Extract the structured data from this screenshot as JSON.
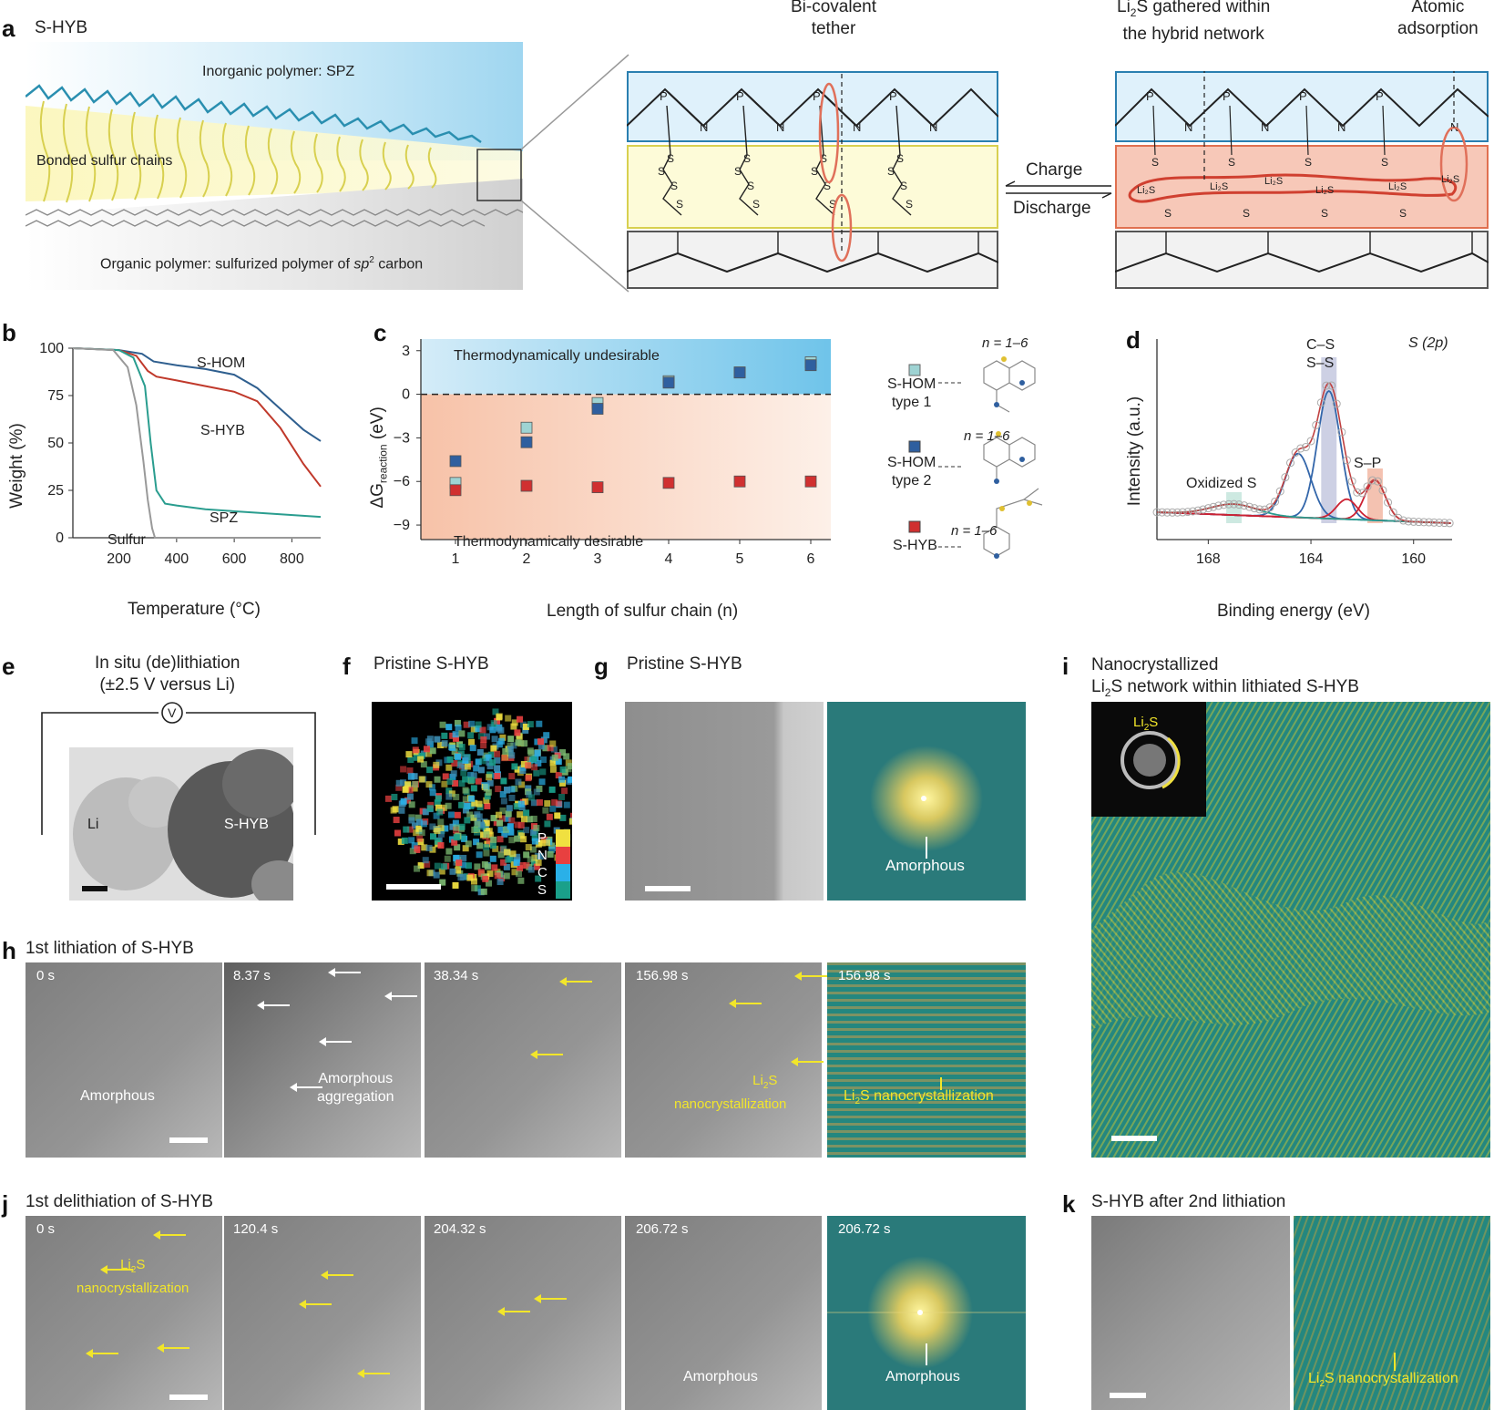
{
  "panels": {
    "a": {
      "label": "a",
      "title": "S-HYB",
      "inorganic": "Inorganic polymer: SPZ",
      "bonded": "Bonded sulfur chains",
      "organic_pre": "Organic polymer: sulfurized polymer of ",
      "organic_sp": "sp",
      "organic_sup": "2",
      "organic_post": " carbon",
      "bicovalent_line1": "Bi-covalent",
      "bicovalent_line2": "tether",
      "li2s_gathered_line1": "Li",
      "li2s_gathered_sub": "2",
      "li2s_gathered_rest": "S gathered within",
      "li2s_gathered_line2": "the hybrid network",
      "atomic_line1": "Atomic",
      "atomic_line2": "adsorption",
      "charge": "Charge",
      "discharge": "Discharge",
      "atom_P": "P",
      "atom_N": "N",
      "atom_S": "S",
      "li2s_small": "Li₂S"
    },
    "b": {
      "label": "b",
      "ylabel": "Weight (%)",
      "xlabel": "Temperature (°C)",
      "yticks": [
        "100",
        "75",
        "50",
        "25",
        "0"
      ],
      "xticks": [
        "200",
        "400",
        "600",
        "800"
      ],
      "labels": {
        "shom": "S-HOM",
        "shyb": "S-HYB",
        "spz": "SPZ",
        "sulfur": "Sulfur"
      }
    },
    "c": {
      "label": "c",
      "undesirable": "Thermodynamically undesirable",
      "desirable": "Thermodynamically desirable",
      "ylabel_main": "ΔG",
      "ylabel_sub": "reaction",
      "ylabel_unit": " (eV)",
      "xlabel": "Length of sulfur chain (n)",
      "legend": [
        {
          "name": "S-HOM",
          "name2": "type 1",
          "n": "n = 1–6"
        },
        {
          "name": "S-HOM",
          "name2": "type 2",
          "n": "n = 1–6"
        },
        {
          "name": "S-HYB",
          "name2": "",
          "n": "n = 1–6"
        }
      ]
    },
    "d": {
      "label": "d",
      "ylabel": "Intensity (a.u.)",
      "xlabel": "Binding energy (eV)",
      "xticks": [
        "168",
        "164",
        "160"
      ],
      "orbital_label": "S (2p)",
      "peaks": {
        "cs": "C–S",
        "ss": "S–S",
        "sp": "S–P",
        "ox": "Oxidized S"
      }
    },
    "e": {
      "label": "e",
      "title1": "In situ (de)lithiation",
      "title2": "(±2.5 V versus Li)",
      "li": "Li",
      "shyb": "S-HYB",
      "v": "V"
    },
    "f": {
      "label": "f",
      "title": "Pristine S-HYB",
      "legend": [
        "P",
        "N",
        "C",
        "S"
      ]
    },
    "g": {
      "label": "g",
      "title": "Pristine S-HYB",
      "amorphous": "Amorphous"
    },
    "h": {
      "label": "h",
      "title": "1st lithiation of S-HYB",
      "frames": [
        "0 s",
        "8.37 s",
        "38.34 s",
        "156.98 s",
        "156.98 s"
      ],
      "amorphous": "Amorphous",
      "agg1": "Amorphous",
      "agg2": "aggregation",
      "nano_li": "Li",
      "nano_sub": "2",
      "nano_s": "S",
      "nano2": "nanocrystallization",
      "fft_label": "S nanocrystallization"
    },
    "i": {
      "label": "i",
      "title1": "Nanocrystallized",
      "title2_li": "Li",
      "title2_sub": "2",
      "title2_rest": "S network within lithiated S-HYB",
      "inset_li": "Li",
      "inset_sub": "2",
      "inset_s": "S"
    },
    "j": {
      "label": "j",
      "title": "1st delithiation of S-HYB",
      "frames": [
        "0 s",
        "120.4 s",
        "204.32 s",
        "206.72 s",
        "206.72 s"
      ],
      "nano_li": "Li",
      "nano_sub": "2",
      "nano_s": "S",
      "nano2": "nanocrystallization",
      "amorphous": "Amorphous"
    },
    "k": {
      "label": "k",
      "title": "S-HYB after 2nd lithiation",
      "nano": "S nanocrystallization",
      "nano_li": "Li",
      "nano_sub": "2"
    }
  },
  "chart_data": [
    {
      "panel": "b",
      "type": "line",
      "xlabel": "Temperature (°C)",
      "ylabel": "Weight (%)",
      "xlim": [
        40,
        900
      ],
      "ylim": [
        0,
        100
      ],
      "series": [
        {
          "name": "S-HOM",
          "color": "#2f5f8f",
          "points": [
            [
              40,
              100
            ],
            [
              200,
              99
            ],
            [
              280,
              97
            ],
            [
              320,
              93
            ],
            [
              400,
              91
            ],
            [
              500,
              89
            ],
            [
              600,
              86
            ],
            [
              680,
              79
            ],
            [
              760,
              68
            ],
            [
              840,
              57
            ],
            [
              900,
              51
            ]
          ]
        },
        {
          "name": "S-HYB",
          "color": "#c0392b",
          "points": [
            [
              40,
              100
            ],
            [
              200,
              99
            ],
            [
              260,
              96
            ],
            [
              300,
              88
            ],
            [
              330,
              85
            ],
            [
              400,
              83
            ],
            [
              500,
              80
            ],
            [
              600,
              77
            ],
            [
              680,
              72
            ],
            [
              760,
              58
            ],
            [
              840,
              39
            ],
            [
              900,
              27
            ]
          ]
        },
        {
          "name": "SPZ",
          "color": "#2a9d8f",
          "points": [
            [
              40,
              100
            ],
            [
              200,
              99
            ],
            [
              250,
              95
            ],
            [
              290,
              80
            ],
            [
              310,
              50
            ],
            [
              330,
              25
            ],
            [
              360,
              18
            ],
            [
              400,
              17
            ],
            [
              500,
              15
            ],
            [
              700,
              13
            ],
            [
              900,
              11
            ]
          ]
        },
        {
          "name": "Sulfur",
          "color": "#999999",
          "points": [
            [
              40,
              100
            ],
            [
              180,
              99
            ],
            [
              230,
              90
            ],
            [
              260,
              70
            ],
            [
              285,
              40
            ],
            [
              300,
              20
            ],
            [
              315,
              5
            ],
            [
              325,
              0
            ],
            [
              900,
              0
            ]
          ]
        }
      ]
    },
    {
      "panel": "c",
      "type": "scatter",
      "xlabel": "Length of sulfur chain (n)",
      "ylabel": "ΔG reaction (eV)",
      "categories": [
        1,
        2,
        3,
        4,
        5,
        6
      ],
      "ylim": [
        -10,
        3.8
      ],
      "yticks": [
        3,
        0,
        -3,
        -6,
        -9
      ],
      "series": [
        {
          "name": "S-HOM type 1",
          "color": "#9ed3d3",
          "values": [
            -6.1,
            -2.3,
            -0.6,
            0.9,
            1.5,
            2.2
          ]
        },
        {
          "name": "S-HOM type 2",
          "color": "#2f5f9f",
          "values": [
            -4.6,
            -3.3,
            -1.0,
            0.8,
            1.5,
            2.0
          ]
        },
        {
          "name": "S-HYB",
          "color": "#d03030",
          "values": [
            -6.6,
            -6.3,
            -6.4,
            -6.1,
            -6.0,
            -6.0
          ]
        }
      ]
    },
    {
      "panel": "d",
      "type": "line",
      "xlabel": "Binding energy (eV)",
      "ylabel": "Intensity (a.u.)",
      "xlim": [
        170,
        158.5
      ],
      "series": [
        {
          "name": "C–S / S–S",
          "color": "#3366aa",
          "center": 163.3
        },
        {
          "name": "S–S",
          "color": "#3366aa",
          "center": 164.5
        },
        {
          "name": "S–P",
          "color": "#cc2233",
          "center": 161.5
        },
        {
          "name": "Oxidized S",
          "color": "#2a9d8f",
          "center": 167.0
        }
      ]
    }
  ]
}
